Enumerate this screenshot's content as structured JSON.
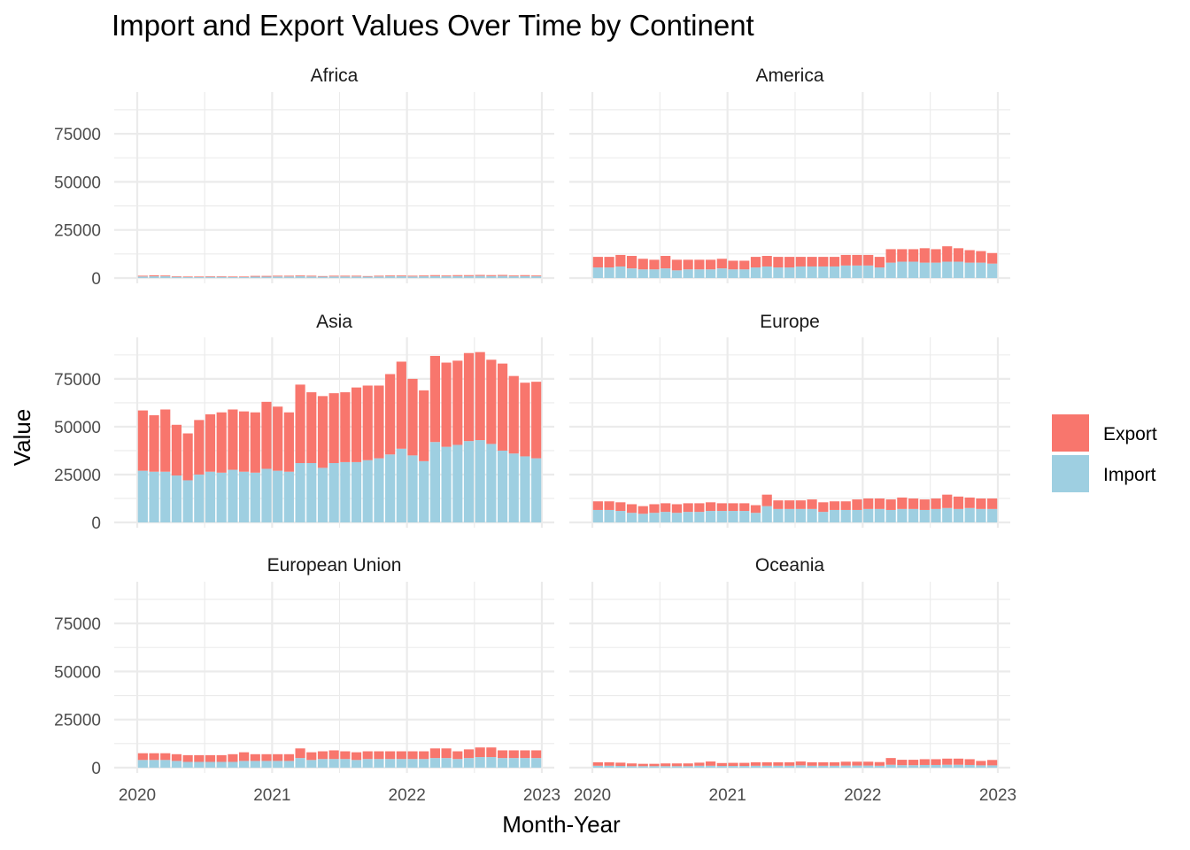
{
  "chart_data": {
    "type": "bar",
    "stacked": true,
    "facet": "continent",
    "title": "Import and Export Values Over Time by Continent",
    "xlabel": "Month-Year",
    "ylabel": "Value",
    "x_ticks": [
      "2020",
      "2021",
      "2022",
      "2023"
    ],
    "y_ticks": [
      0,
      25000,
      50000,
      75000
    ],
    "ylim": [
      0,
      93000
    ],
    "grid": true,
    "legend_position": "right",
    "legend": [
      {
        "name": "Export",
        "color": "#F8766D"
      },
      {
        "name": "Import",
        "color": "#9ECFE1"
      }
    ],
    "months": [
      "2020-01",
      "2020-02",
      "2020-03",
      "2020-04",
      "2020-05",
      "2020-06",
      "2020-07",
      "2020-08",
      "2020-09",
      "2020-10",
      "2020-11",
      "2020-12",
      "2021-01",
      "2021-02",
      "2021-03",
      "2021-04",
      "2021-05",
      "2021-06",
      "2021-07",
      "2021-08",
      "2021-09",
      "2021-10",
      "2021-11",
      "2021-12",
      "2022-01",
      "2022-02",
      "2022-03",
      "2022-04",
      "2022-05",
      "2022-06",
      "2022-07",
      "2022-08",
      "2022-09",
      "2022-10",
      "2022-11",
      "2022-12"
    ],
    "panels": [
      {
        "name": "Africa",
        "import": [
          800,
          900,
          900,
          600,
          500,
          500,
          600,
          600,
          500,
          500,
          700,
          700,
          800,
          800,
          900,
          800,
          700,
          800,
          800,
          800,
          700,
          800,
          900,
          900,
          800,
          900,
          1000,
          900,
          1000,
          1000,
          1100,
          1000,
          1100,
          900,
          1000,
          900
        ],
        "export": [
          400,
          500,
          400,
          300,
          300,
          300,
          300,
          300,
          300,
          300,
          400,
          400,
          400,
          400,
          400,
          400,
          300,
          400,
          400,
          400,
          300,
          400,
          400,
          400,
          400,
          400,
          500,
          400,
          500,
          500,
          500,
          500,
          500,
          400,
          500,
          400
        ]
      },
      {
        "name": "America",
        "import": [
          5500,
          5500,
          6000,
          5000,
          4500,
          4500,
          5000,
          4000,
          4500,
          4500,
          4500,
          5000,
          4500,
          4500,
          5500,
          6000,
          5500,
          5500,
          6000,
          6000,
          6000,
          6000,
          6500,
          6500,
          6500,
          5500,
          8000,
          8500,
          8500,
          8000,
          8000,
          8500,
          8500,
          8000,
          8000,
          7500
        ],
        "export": [
          5500,
          5500,
          6000,
          6500,
          5500,
          5000,
          6500,
          5500,
          5000,
          5000,
          5000,
          5000,
          4500,
          4500,
          5500,
          5500,
          5500,
          5500,
          5000,
          5000,
          5000,
          5000,
          5500,
          5500,
          5500,
          5500,
          7000,
          6500,
          6500,
          7500,
          7000,
          8000,
          7000,
          6500,
          6000,
          5500
        ]
      },
      {
        "name": "Asia",
        "import": [
          27000,
          26500,
          26500,
          24500,
          22000,
          25000,
          26500,
          26000,
          27500,
          26500,
          26000,
          28000,
          27000,
          26500,
          31000,
          31000,
          28500,
          31000,
          31500,
          31500,
          32500,
          33500,
          35500,
          38500,
          35000,
          32000,
          42000,
          39500,
          40500,
          42500,
          43000,
          41000,
          37500,
          36000,
          34500,
          33500
        ],
        "export": [
          31500,
          29500,
          32500,
          26500,
          24500,
          28500,
          30000,
          31500,
          31500,
          31500,
          31500,
          35000,
          33500,
          31000,
          41000,
          37000,
          37500,
          36500,
          36500,
          39000,
          39000,
          38000,
          42000,
          45500,
          40000,
          37000,
          45000,
          44000,
          44000,
          46000,
          46000,
          44000,
          45500,
          40500,
          38500,
          40000
        ]
      },
      {
        "name": "Europe",
        "import": [
          6500,
          6500,
          6000,
          5000,
          4500,
          5000,
          5500,
          5000,
          5500,
          5500,
          6000,
          6000,
          6000,
          6000,
          5000,
          8500,
          7000,
          7000,
          7000,
          7000,
          5500,
          6500,
          6500,
          6500,
          7000,
          7000,
          6500,
          7000,
          7000,
          6500,
          7000,
          7500,
          7000,
          7500,
          7000,
          7000
        ],
        "export": [
          4500,
          4500,
          4500,
          4500,
          4000,
          4500,
          4500,
          4500,
          4500,
          4500,
          4500,
          4000,
          4000,
          4000,
          4000,
          6000,
          4500,
          4500,
          4500,
          5000,
          5000,
          4500,
          4500,
          5500,
          5500,
          5500,
          5500,
          6000,
          5500,
          5500,
          5500,
          7000,
          6500,
          5500,
          5500,
          5500
        ]
      },
      {
        "name": "European Union",
        "import": [
          4000,
          4000,
          4000,
          3500,
          3000,
          3000,
          3000,
          3000,
          3000,
          3500,
          3500,
          3500,
          3500,
          3500,
          5000,
          4000,
          4500,
          4500,
          4500,
          4000,
          4500,
          4500,
          4500,
          4500,
          4500,
          4500,
          5000,
          5000,
          4500,
          5000,
          5500,
          5500,
          5000,
          5000,
          5000,
          5000
        ],
        "export": [
          3500,
          3500,
          3500,
          3500,
          3500,
          3500,
          3500,
          3500,
          4000,
          4500,
          3500,
          3500,
          3500,
          3500,
          5000,
          4000,
          4000,
          4500,
          4000,
          4000,
          4000,
          4000,
          4000,
          4000,
          4000,
          4000,
          5000,
          5000,
          4000,
          4500,
          5000,
          5000,
          4000,
          4000,
          4000,
          4000
        ]
      },
      {
        "name": "Oceania",
        "import": [
          1000,
          1000,
          900,
          800,
          800,
          800,
          800,
          800,
          800,
          1000,
          1000,
          900,
          900,
          900,
          1000,
          1000,
          1000,
          1000,
          1200,
          1000,
          1000,
          1000,
          1100,
          1100,
          1100,
          1000,
          1500,
          1300,
          1300,
          1400,
          1400,
          1500,
          1500,
          1400,
          1200,
          1200
        ],
        "export": [
          1800,
          1800,
          1700,
          1400,
          1200,
          1200,
          1400,
          1400,
          1400,
          1600,
          2200,
          1500,
          1600,
          1600,
          1800,
          1800,
          1800,
          1800,
          2000,
          1800,
          1800,
          1800,
          2000,
          2000,
          2000,
          1900,
          3500,
          2800,
          2800,
          3000,
          3000,
          3200,
          3200,
          3000,
          2300,
          2800
        ]
      }
    ]
  }
}
